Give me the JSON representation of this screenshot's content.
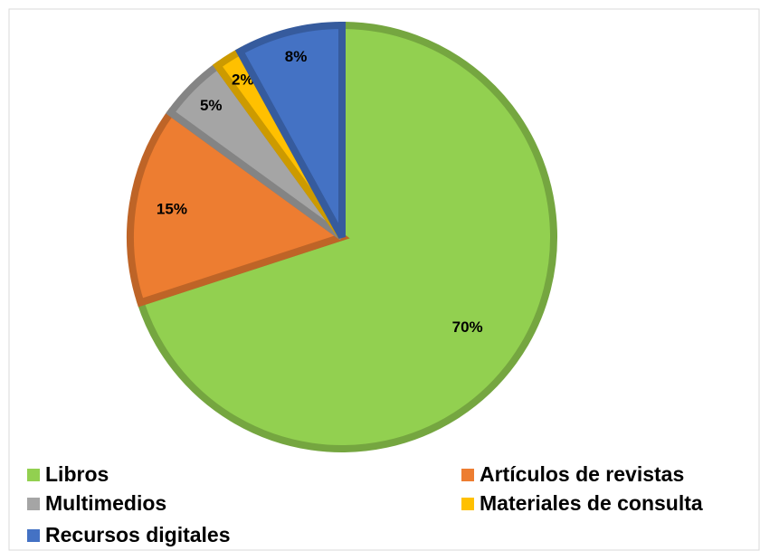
{
  "chart_data": {
    "type": "pie",
    "categories": [
      "Libros",
      "Artículos de revistas",
      "Multimedios",
      "Materiales de consulta",
      "Recursos digitales"
    ],
    "values": [
      70,
      15,
      5,
      2,
      8
    ],
    "value_labels": [
      "70%",
      "15%",
      "5%",
      "2%",
      "8%"
    ],
    "colors": [
      "#92d050",
      "#ed7d31",
      "#a5a5a5",
      "#ffc000",
      "#4472c4"
    ],
    "legend": "bottom"
  }
}
